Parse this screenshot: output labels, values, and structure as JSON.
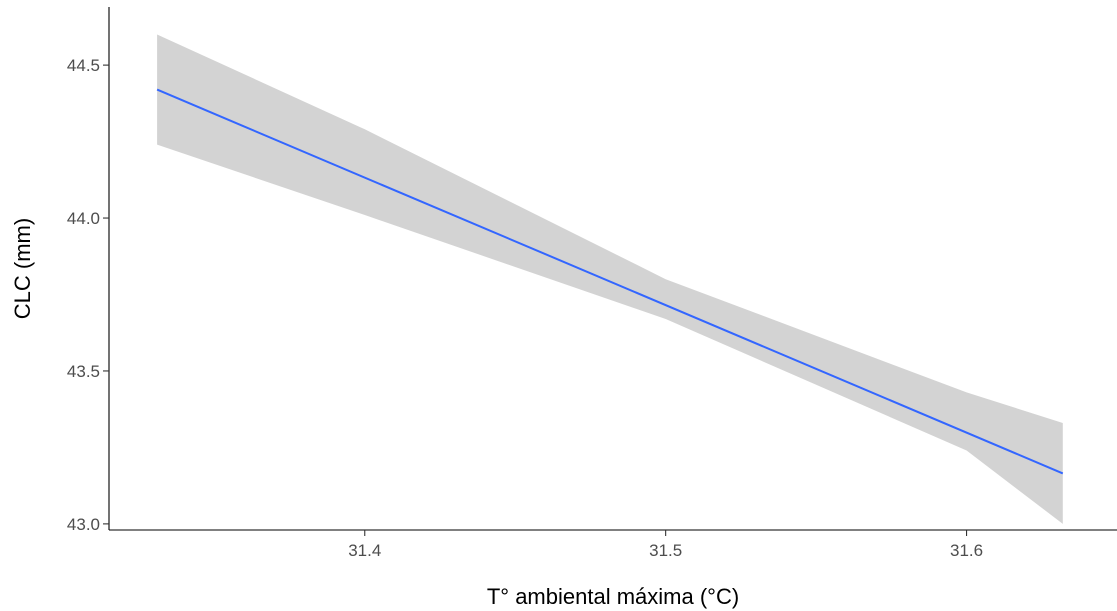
{
  "chart_data": {
    "type": "line",
    "title": "",
    "xlabel": "T° ambiental máxima (°C)",
    "ylabel": "CLC (mm)",
    "xlim": [
      31.315,
      31.65
    ],
    "ylim": [
      42.98,
      44.69
    ],
    "x_ticks": [
      31.4,
      31.5,
      31.6
    ],
    "x_tick_labels": [
      "31.4",
      "31.5",
      "31.6"
    ],
    "y_ticks": [
      43.0,
      43.5,
      44.0,
      44.5
    ],
    "y_tick_labels": [
      "43.0",
      "43.5",
      "44.0",
      "44.5"
    ],
    "grid": false,
    "legend": "none",
    "series": [
      {
        "x": [
          31.331,
          31.632
        ],
        "y": [
          44.42,
          43.165
        ],
        "color": "#3366FF"
      }
    ],
    "confidence_band": {
      "color": "#d3d3d3",
      "x": [
        31.331,
        31.4,
        31.5,
        31.6,
        31.632
      ],
      "lower": [
        44.24,
        44.01,
        43.67,
        43.24,
        43.0
      ],
      "upper": [
        44.6,
        44.29,
        43.8,
        43.43,
        43.33
      ]
    }
  }
}
